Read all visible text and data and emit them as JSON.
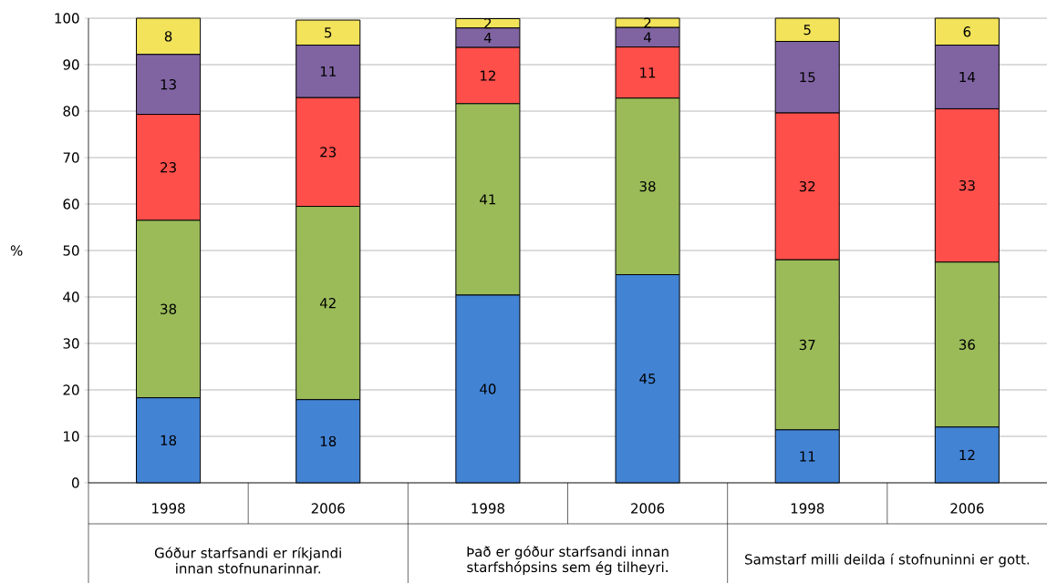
{
  "chart_data": {
    "type": "bar",
    "stacked": true,
    "ylabel": "%",
    "categories": [
      "1998",
      "2006",
      "1998",
      "2006",
      "1998",
      "2006"
    ],
    "annotations": [
      "Góður starfsandi er ríkjandi innan stofnunarinnar.",
      "Það er góður starfsandi innan starfshópsins sem ég tilheyri.",
      "Samstarf milli deilda í stofnuninni er gott."
    ],
    "series": [
      {
        "color": "#4383d4",
        "values": [
          18.3,
          17.9,
          40.4,
          44.8,
          11.4,
          12
        ],
        "value_labels": [
          "18",
          "18",
          "40",
          "45",
          "11",
          "12"
        ]
      },
      {
        "color": "#9bbb59",
        "values": [
          38.2,
          41.6,
          41.2,
          38,
          36.6,
          35.5
        ],
        "value_labels": [
          "38",
          "42",
          "41",
          "38",
          "37",
          "36"
        ]
      },
      {
        "color": "#ff4f4b",
        "values": [
          22.8,
          23.4,
          12.1,
          11,
          31.6,
          33
        ],
        "value_labels": [
          "23",
          "23",
          "12",
          "11",
          "32",
          "33"
        ]
      },
      {
        "color": "#8064a2",
        "values": [
          12.9,
          11.3,
          4.2,
          4.2,
          15.4,
          13.7
        ],
        "value_labels": [
          "13",
          "11",
          "4",
          "4",
          "15",
          "14"
        ]
      },
      {
        "color": "#f2e35a",
        "values": [
          7.8,
          5.4,
          2,
          2,
          5,
          5.8
        ],
        "value_labels": [
          "8",
          "5",
          "2",
          "2",
          "5",
          "6"
        ]
      }
    ],
    "ylim": [
      0,
      100
    ],
    "yticks": [
      0,
      10,
      20,
      30,
      40,
      50,
      60,
      70,
      80,
      90,
      100
    ],
    "grid": "y"
  }
}
